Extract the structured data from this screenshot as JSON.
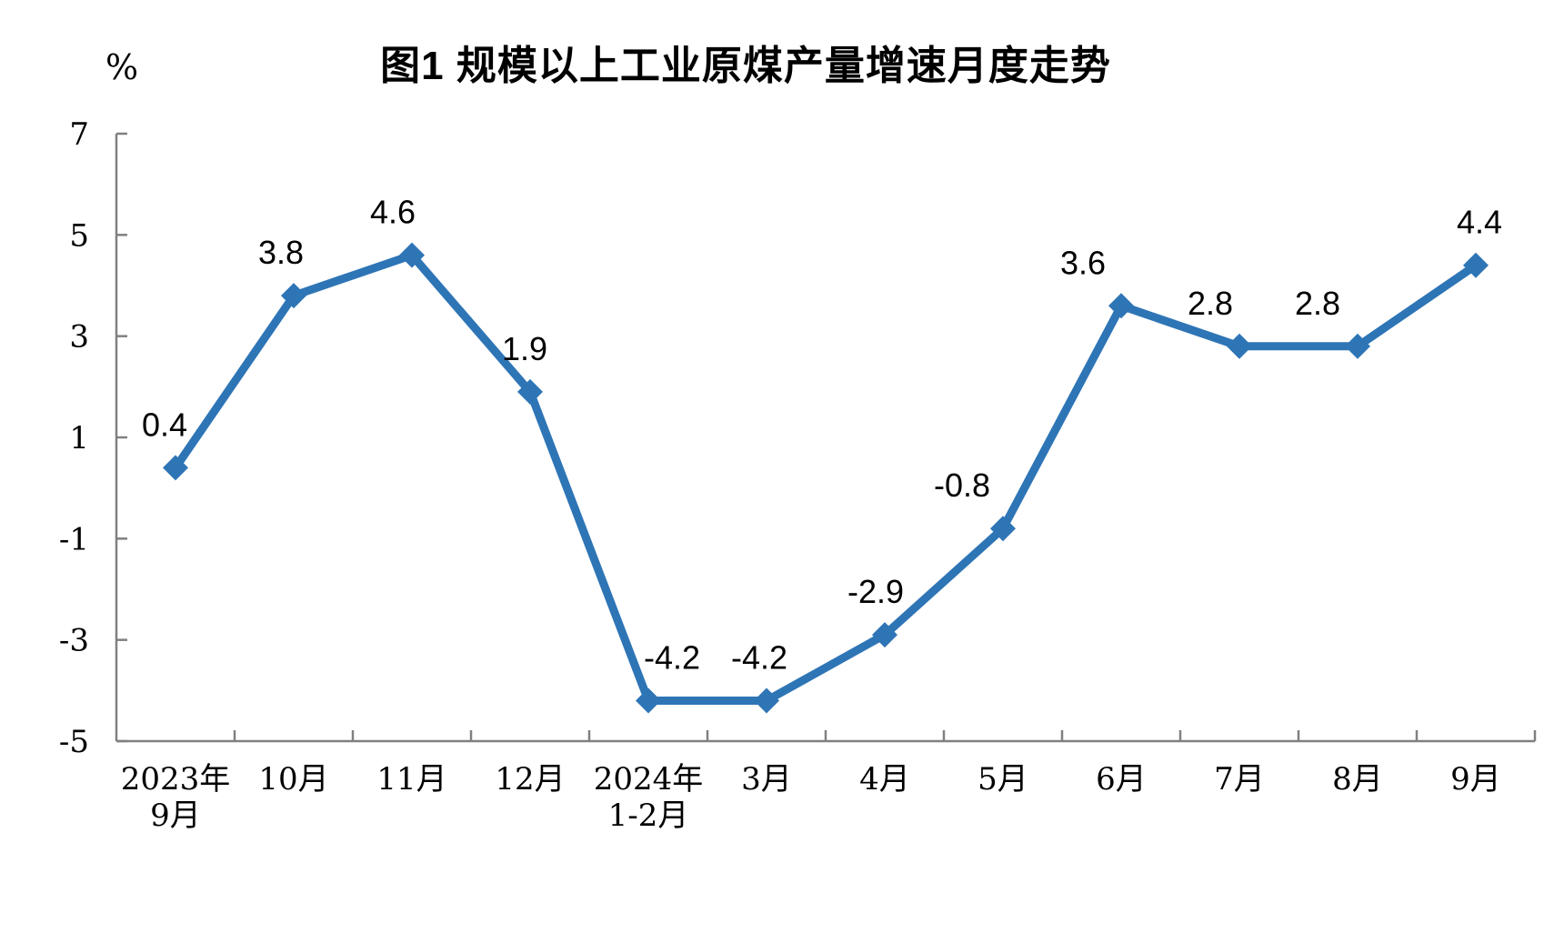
{
  "chart_data": {
    "type": "line",
    "title": "图1  规模以上工业原煤产量增速月度走势",
    "unit_label": "%",
    "categories": [
      [
        "2023年",
        "9月"
      ],
      [
        "10月"
      ],
      [
        "11月"
      ],
      [
        "12月"
      ],
      [
        "2024年",
        "1-2月"
      ],
      [
        "3月"
      ],
      [
        "4月"
      ],
      [
        "5月"
      ],
      [
        "6月"
      ],
      [
        "7月"
      ],
      [
        "8月"
      ],
      [
        "9月"
      ]
    ],
    "values": [
      0.4,
      3.8,
      4.6,
      1.9,
      -4.2,
      -4.2,
      -2.9,
      -0.8,
      3.6,
      2.8,
      2.8,
      4.4
    ],
    "data_labels": [
      "0.4",
      "3.8",
      "4.6",
      "1.9",
      "-4.2",
      "-4.2",
      "-2.9",
      "-0.8",
      "3.6",
      "2.8",
      "2.8",
      "4.4"
    ],
    "y_ticks": [
      7,
      5,
      3,
      1,
      -1,
      -3,
      -5
    ],
    "ylim": [
      -5,
      7
    ],
    "grid": false,
    "legend": "none",
    "marker": "diamond",
    "colors": {
      "line": "#2E75B6",
      "axis": "#808080",
      "text": "#000000"
    }
  }
}
